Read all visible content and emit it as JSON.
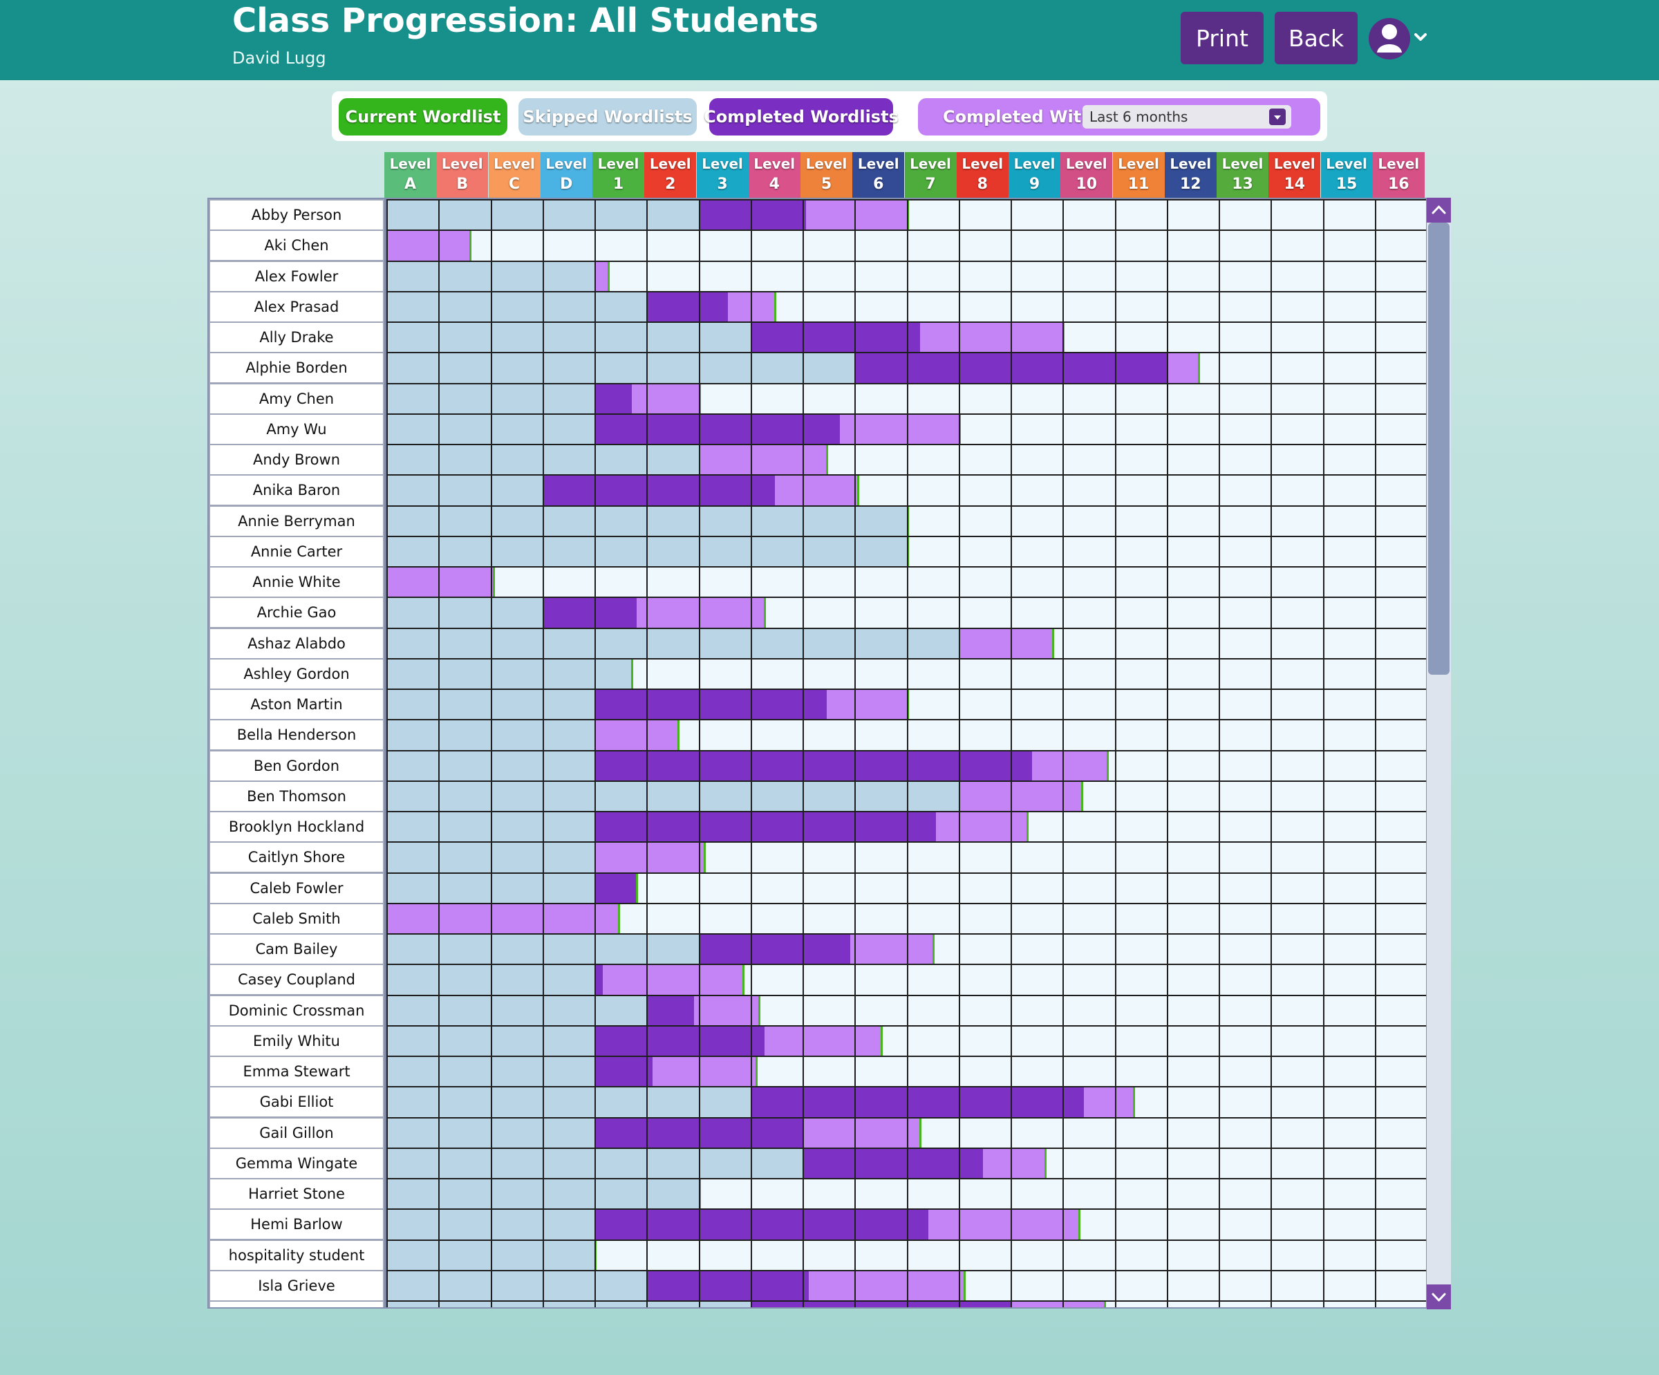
{
  "header": {
    "title": "Class Progression: All Students",
    "teacher": "David Lugg",
    "print_label": "Print",
    "back_label": "Back",
    "user_icon": "user-avatar-icon",
    "menu_icon": "chevron-down-icon"
  },
  "filters": {
    "current_label": "Current Wordlist",
    "skipped_label": "Skipped Wordlists",
    "completed_label": "Completed Wordlists",
    "within_label": "Completed Within:",
    "within_value": "Last 6 months"
  },
  "colors": {
    "skipped": "#bad6e6",
    "completed": "#7d31c5",
    "current": "#c484f6",
    "current_marker": "#46b520",
    "not_started": "#eff8fd",
    "header_bar": "#17908b"
  },
  "levels": [
    {
      "top": "Level",
      "bottom": "A",
      "color": "#5bbd7a"
    },
    {
      "top": "Level",
      "bottom": "B",
      "color": "#f1776c"
    },
    {
      "top": "Level",
      "bottom": "C",
      "color": "#f79a5a"
    },
    {
      "top": "Level",
      "bottom": "D",
      "color": "#4bb3e3"
    },
    {
      "top": "Level",
      "bottom": "1",
      "color": "#4bb23f"
    },
    {
      "top": "Level",
      "bottom": "2",
      "color": "#ea3d2c"
    },
    {
      "top": "Level",
      "bottom": "3",
      "color": "#19a8c5"
    },
    {
      "top": "Level",
      "bottom": "4",
      "color": "#d9528a"
    },
    {
      "top": "Level",
      "bottom": "5",
      "color": "#ef823a"
    },
    {
      "top": "Level",
      "bottom": "6",
      "color": "#334b95"
    },
    {
      "top": "Level",
      "bottom": "7",
      "color": "#4eac3c"
    },
    {
      "top": "Level",
      "bottom": "8",
      "color": "#e5372a"
    },
    {
      "top": "Level",
      "bottom": "9",
      "color": "#14a4c2"
    },
    {
      "top": "Level",
      "bottom": "10",
      "color": "#d24f86"
    },
    {
      "top": "Level",
      "bottom": "11",
      "color": "#ef8236"
    },
    {
      "top": "Level",
      "bottom": "12",
      "color": "#334d96"
    },
    {
      "top": "Level",
      "bottom": "13",
      "color": "#55ac3d"
    },
    {
      "top": "Level",
      "bottom": "14",
      "color": "#e63b2b"
    },
    {
      "top": "Level",
      "bottom": "15",
      "color": "#17a6c3"
    },
    {
      "top": "Level",
      "bottom": "16",
      "color": "#d65185"
    }
  ],
  "students": [
    {
      "name": "Abby Person",
      "skipped": 6,
      "completed": 2.05,
      "current": 1.95
    },
    {
      "name": "Aki Chen",
      "skipped": 0,
      "completed": 0,
      "current": 1.6
    },
    {
      "name": "Alex Fowler",
      "skipped": 4,
      "completed": 0,
      "current": 0.25
    },
    {
      "name": "Alex Prasad",
      "skipped": 5,
      "completed": 1.55,
      "current": 0.9
    },
    {
      "name": "Ally Drake",
      "skipped": 7,
      "completed": 3.25,
      "current": 2.75
    },
    {
      "name": "Alphie Borden",
      "skipped": 9,
      "completed": 6,
      "current": 0.6
    },
    {
      "name": "Amy Chen",
      "skipped": 4,
      "completed": 0.7,
      "current": 1.3
    },
    {
      "name": "Amy Wu",
      "skipped": 4,
      "completed": 4.7,
      "current": 2.3
    },
    {
      "name": "Andy Brown",
      "skipped": 6,
      "completed": 0,
      "current": 2.45
    },
    {
      "name": "Anika Baron",
      "skipped": 3,
      "completed": 4.45,
      "current": 1.6
    },
    {
      "name": "Annie Berryman",
      "skipped": 10,
      "completed": 0,
      "current": 0
    },
    {
      "name": "Annie Carter",
      "skipped": 10,
      "completed": 0,
      "current": 0
    },
    {
      "name": "Annie White",
      "skipped": 0,
      "completed": 0,
      "current": 2.05
    },
    {
      "name": "Archie Gao",
      "skipped": 3,
      "completed": 1.8,
      "current": 2.45
    },
    {
      "name": "Ashaz Alabdo",
      "skipped": 11,
      "completed": 0,
      "current": 1.8
    },
    {
      "name": "Ashley Gordon",
      "skipped": 4.7,
      "completed": 0,
      "current": 0
    },
    {
      "name": "Aston Martin",
      "skipped": 4,
      "completed": 4.45,
      "current": 1.55
    },
    {
      "name": "Bella Henderson",
      "skipped": 4,
      "completed": 0,
      "current": 1.6
    },
    {
      "name": "Ben Gordon",
      "skipped": 4,
      "completed": 8.4,
      "current": 1.45
    },
    {
      "name": "Ben Thomson",
      "skipped": 11,
      "completed": 0,
      "current": 2.35
    },
    {
      "name": "Brooklyn Hockland",
      "skipped": 4,
      "completed": 6.55,
      "current": 1.75
    },
    {
      "name": "Caitlyn Shore",
      "skipped": 4,
      "completed": 0,
      "current": 2.1
    },
    {
      "name": "Caleb Fowler",
      "skipped": 4,
      "completed": 0.8,
      "current": 0
    },
    {
      "name": "Caleb Smith",
      "skipped": 0,
      "completed": 0,
      "current": 4.45
    },
    {
      "name": "Cam Bailey",
      "skipped": 6,
      "completed": 2.9,
      "current": 1.6
    },
    {
      "name": "Casey Coupland",
      "skipped": 4,
      "completed": 0.15,
      "current": 2.7
    },
    {
      "name": "Dominic Crossman",
      "skipped": 5,
      "completed": 0.9,
      "current": 1.25
    },
    {
      "name": "Emily Whitu",
      "skipped": 4,
      "completed": 3.25,
      "current": 2.25
    },
    {
      "name": "Emma Stewart",
      "skipped": 4,
      "completed": 1.1,
      "current": 2.0
    },
    {
      "name": "Gabi Elliot",
      "skipped": 7,
      "completed": 6.4,
      "current": 0.95
    },
    {
      "name": "Gail Gillon",
      "skipped": 4,
      "completed": 4,
      "current": 2.25
    },
    {
      "name": "Gemma Wingate",
      "skipped": 8,
      "completed": 3.45,
      "current": 1.2
    },
    {
      "name": "Harriet Stone",
      "skipped": 6,
      "completed": 0,
      "current": 0
    },
    {
      "name": "Hemi Barlow",
      "skipped": 4,
      "completed": 6.4,
      "current": 2.9
    },
    {
      "name": "hospitality student",
      "skipped": 4,
      "completed": 0,
      "current": 0
    },
    {
      "name": "Isla Grieve",
      "skipped": 5,
      "completed": 3.1,
      "current": 3.0
    },
    {
      "name": "",
      "skipped": 7,
      "completed": 5,
      "current": 1.8
    }
  ]
}
